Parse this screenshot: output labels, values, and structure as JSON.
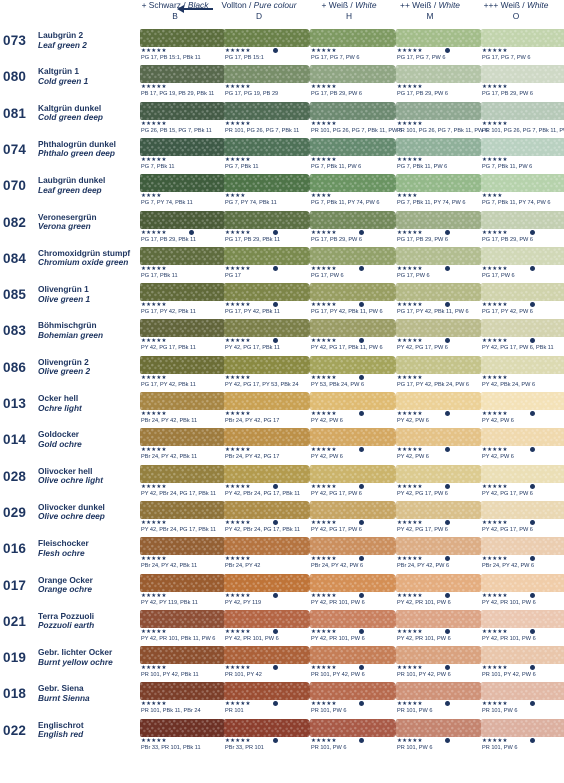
{
  "header": {
    "columns": [
      {
        "title": "+ Schwarz / ",
        "title_it": "Black",
        "letter": "B"
      },
      {
        "title": "Vollton / ",
        "title_it": "Pure colour",
        "letter": "D"
      },
      {
        "title": "+ Weiß / ",
        "title_it": "White",
        "letter": "H"
      },
      {
        "title": "++ Weiß / ",
        "title_it": "White",
        "letter": "M"
      },
      {
        "title": "+++ Weiß / ",
        "title_it": "White",
        "letter": "O"
      }
    ]
  },
  "rows": [
    {
      "num": "073",
      "de": "Laubgrün 2",
      "en": "Leaf green 2",
      "cells": [
        {
          "color": "#5c6e3e",
          "stars": "★★★★★",
          "dot": false,
          "pig": "PG 17, PB 15:1, PBk 11"
        },
        {
          "color": "#6a8149",
          "stars": "★★★★★",
          "dot": true,
          "pig": "PG 17, PB 15:1"
        },
        {
          "color": "#7e9a62",
          "stars": "★★★★★",
          "dot": false,
          "pig": "PG 17, PG 7, PW 6"
        },
        {
          "color": "#a3bd8a",
          "stars": "★★★★★",
          "dot": true,
          "pig": "PG 17, PG 7, PW 6"
        },
        {
          "color": "#c2d4ad",
          "stars": "★★★★★",
          "dot": false,
          "pig": "PG 17, PG 7, PW 6"
        }
      ]
    },
    {
      "num": "080",
      "de": "Kaltgrün 1",
      "en": "Cold green 1",
      "cells": [
        {
          "color": "#58694d",
          "stars": "★★★★★",
          "dot": false,
          "pig": "PB 17, PG 19, PB 29, PBk 11"
        },
        {
          "color": "#788e69",
          "stars": "★★★★★",
          "dot": false,
          "pig": "PG 17, PG 19, PB 29"
        },
        {
          "color": "#8fa583",
          "stars": "★★★★★",
          "dot": false,
          "pig": "PG 17, PB 29, PW 6"
        },
        {
          "color": "#b3c4a7",
          "stars": "★★★★★",
          "dot": false,
          "pig": "PG 17, PB 29, PW 6"
        },
        {
          "color": "#cfd9c6",
          "stars": "★★★★★",
          "dot": false,
          "pig": "PG 17, PB 29, PW 6"
        }
      ]
    },
    {
      "num": "081",
      "de": "Kaltgrün dunkel",
      "en": "Cold green deep",
      "cells": [
        {
          "color": "#455c47",
          "stars": "★★★★★",
          "dot": false,
          "pig": "PG 26, PB 15, PG 7, PBk 11"
        },
        {
          "color": "#4f6b54",
          "stars": "★★★★★",
          "dot": false,
          "pig": "PR 101, PG 26, PG 7, PBk 11"
        },
        {
          "color": "#6d8a71",
          "stars": "★★★★★",
          "dot": false,
          "pig": "PR 101, PG 26, PG 7, PBk 11, PW 6"
        },
        {
          "color": "#8fa892",
          "stars": "★★★★★",
          "dot": false,
          "pig": "PR 101, PG 26, PG 7, PBk 11, PW 6"
        },
        {
          "color": "#b6c9b8",
          "stars": "★★★★★",
          "dot": false,
          "pig": "PR 101, PG 26, PG 7, PBk 11, PW 6"
        }
      ]
    },
    {
      "num": "074",
      "de": "Phthalogrün dunkel",
      "en": "Phthalo green deep",
      "cells": [
        {
          "color": "#3e5a47",
          "stars": "★★★★★",
          "dot": false,
          "pig": "PG 7, PBk 11"
        },
        {
          "color": "#4e7157",
          "stars": "★★★★★",
          "dot": false,
          "pig": "PG 7, PBk 11"
        },
        {
          "color": "#648a6f",
          "stars": "★★★★★",
          "dot": false,
          "pig": "PG 7, PBk 11, PW 6"
        },
        {
          "color": "#8fb09a",
          "stars": "★★★★★",
          "dot": false,
          "pig": "PG 7, PBk 11, PW 6"
        },
        {
          "color": "#b9d1c1",
          "stars": "★★★★★",
          "dot": false,
          "pig": "PG 7, PBk 11, PW 6"
        }
      ]
    },
    {
      "num": "070",
      "de": "Laubgrün dunkel",
      "en": "Leaf green deep",
      "cells": [
        {
          "color": "#3f5d3d",
          "stars": "★★★★",
          "dot": false,
          "pig": "PG 7, PY 74, PBk 11"
        },
        {
          "color": "#4e7448",
          "stars": "★★★★",
          "dot": false,
          "pig": "PG 7, PY 74, PBk 11"
        },
        {
          "color": "#6a9462",
          "stars": "★★★★",
          "dot": false,
          "pig": "PG 7, PBk 11, PY 74, PW 6"
        },
        {
          "color": "#94b98a",
          "stars": "★★★★",
          "dot": false,
          "pig": "PG 7, PBk 11, PY 74, PW 6"
        },
        {
          "color": "#b6d2ac",
          "stars": "★★★★",
          "dot": false,
          "pig": "PG 7, PBk 11, PY 74, PW 6"
        }
      ]
    },
    {
      "num": "082",
      "de": "Veronesergrün",
      "en": "Verona green",
      "cells": [
        {
          "color": "#4b5c38",
          "stars": "★★★★★",
          "dot": true,
          "pig": "PG 17, PB 29, PBk 11"
        },
        {
          "color": "#5c7044",
          "stars": "★★★★★",
          "dot": true,
          "pig": "PG 17, PB 29, PBk 11"
        },
        {
          "color": "#73895b",
          "stars": "★★★★★",
          "dot": true,
          "pig": "PG 17, PB 29, PW 6"
        },
        {
          "color": "#9cad86",
          "stars": "★★★★★",
          "dot": true,
          "pig": "PG 17, PB 29, PW 6"
        },
        {
          "color": "#c3cfb2",
          "stars": "★★★★★",
          "dot": true,
          "pig": "PG 17, PB 29, PW 6"
        }
      ]
    },
    {
      "num": "084",
      "de": "Chromoxidgrün stumpf",
      "en": "Chromium oxide green",
      "cells": [
        {
          "color": "#5f6c3e",
          "stars": "★★★★★",
          "dot": false,
          "pig": "PG 17, PBk 11"
        },
        {
          "color": "#7a8a4e",
          "stars": "★★★★★",
          "dot": true,
          "pig": "PG 17"
        },
        {
          "color": "#92a16a",
          "stars": "★★★★★",
          "dot": true,
          "pig": "PG 17, PW 6"
        },
        {
          "color": "#b2bd90",
          "stars": "★★★★★",
          "dot": true,
          "pig": "PG 17, PW 6"
        },
        {
          "color": "#d1d8b7",
          "stars": "★★★★★",
          "dot": true,
          "pig": "PG 17, PW 6"
        }
      ]
    },
    {
      "num": "085",
      "de": "Olivengrün 1",
      "en": "Olive green 1",
      "cells": [
        {
          "color": "#616a3a",
          "stars": "★★★★★",
          "dot": false,
          "pig": "PG 17, PY 42, PBk 11"
        },
        {
          "color": "#7d8548",
          "stars": "★★★★★",
          "dot": true,
          "pig": "PG 17, PY 42, PBk 11"
        },
        {
          "color": "#989e62",
          "stars": "★★★★★",
          "dot": true,
          "pig": "PG 17, PY 42, PBk 11, PW 6"
        },
        {
          "color": "#b4b986",
          "stars": "★★★★★",
          "dot": true,
          "pig": "PG 17, PY 42, PBk 11, PW 6"
        },
        {
          "color": "#d0d3ac",
          "stars": "★★★★★",
          "dot": true,
          "pig": "PG 17, PY 42, PW 6"
        }
      ]
    },
    {
      "num": "083",
      "de": "Böhmischgrün",
      "en": "Bohemian green",
      "cells": [
        {
          "color": "#62653b",
          "stars": "★★★★★",
          "dot": false,
          "pig": "PY 42, PG 17, PBk 11"
        },
        {
          "color": "#7b7f49",
          "stars": "★★★★★",
          "dot": true,
          "pig": "PY 42, PG 17, PBk 11"
        },
        {
          "color": "#9a9c65",
          "stars": "★★★★★",
          "dot": true,
          "pig": "PY 42, PG 17, PBk 11, PW 6"
        },
        {
          "color": "#b9ba8b",
          "stars": "★★★★★",
          "dot": true,
          "pig": "PY 42, PG 17, PW 6"
        },
        {
          "color": "#d3d3af",
          "stars": "★★★★★",
          "dot": true,
          "pig": "PY 42, PG 17, PW 6, PBk 11"
        }
      ]
    },
    {
      "num": "086",
      "de": "Olivengrün 2",
      "en": "Olive green 2",
      "cells": [
        {
          "color": "#6c6e36",
          "stars": "★★★★★",
          "dot": false,
          "pig": "PG 17, PY 42, PBk 11"
        },
        {
          "color": "#8a8a42",
          "stars": "★★★★★",
          "dot": false,
          "pig": "PY 42, PG 17, PY 53, PBk 24"
        },
        {
          "color": "#a4a45b",
          "stars": "★★★★★",
          "dot": true,
          "pig": "PY 53, PBk 24, PW 6"
        },
        {
          "color": "#c4c38a",
          "stars": "★★★★★",
          "dot": false,
          "pig": "PG 17, PY 42, PBk 24, PW 6"
        },
        {
          "color": "#dcdab2",
          "stars": "★★★★★",
          "dot": false,
          "pig": "PY 42, PBk 24, PW 6"
        }
      ]
    },
    {
      "num": "013",
      "de": "Ocker hell",
      "en": "Ochre light",
      "cells": [
        {
          "color": "#a78644",
          "stars": "★★★★★",
          "dot": false,
          "pig": "PBr 24, PY 42, PBk 11"
        },
        {
          "color": "#c9a153",
          "stars": "★★★★★",
          "dot": false,
          "pig": "PBr 24, PY 42, PG 17"
        },
        {
          "color": "#dfbb72",
          "stars": "★★★★★",
          "dot": true,
          "pig": "PY 42, PW 6"
        },
        {
          "color": "#ecd197",
          "stars": "★★★★★",
          "dot": true,
          "pig": "PY 42, PW 6"
        },
        {
          "color": "#f4e2b8",
          "stars": "★★★★★",
          "dot": true,
          "pig": "PY 42, PW 6"
        }
      ]
    },
    {
      "num": "014",
      "de": "Goldocker",
      "en": "Gold ochre",
      "cells": [
        {
          "color": "#9e7b3e",
          "stars": "★★★★★",
          "dot": false,
          "pig": "PBr 24, PY 42, PBk 11"
        },
        {
          "color": "#bc9048",
          "stars": "★★★★★",
          "dot": false,
          "pig": "PBr 24, PY 42, PG 17"
        },
        {
          "color": "#d4a862",
          "stars": "★★★★★",
          "dot": true,
          "pig": "PY 42, PW 6"
        },
        {
          "color": "#e4c287",
          "stars": "★★★★★",
          "dot": true,
          "pig": "PY 42, PW 6"
        },
        {
          "color": "#f0d9ae",
          "stars": "★★★★★",
          "dot": true,
          "pig": "PY 42, PW 6"
        }
      ]
    },
    {
      "num": "028",
      "de": "Olivocker hell",
      "en": "Olive ochre light",
      "cells": [
        {
          "color": "#94803f",
          "stars": "★★★★★",
          "dot": false,
          "pig": "PY 42, PBr 24, PG 17, PBk 11"
        },
        {
          "color": "#b39b4e",
          "stars": "★★★★★",
          "dot": true,
          "pig": "PY 42, PBr 24, PG 17, PBk 11"
        },
        {
          "color": "#cbb46b",
          "stars": "★★★★★",
          "dot": true,
          "pig": "PY 42, PG 17, PW 6"
        },
        {
          "color": "#dccb90",
          "stars": "★★★★★",
          "dot": true,
          "pig": "PY 42, PG 17, PW 6"
        },
        {
          "color": "#ebdfb6",
          "stars": "★★★★★",
          "dot": true,
          "pig": "PY 42, PG 17, PW 6"
        }
      ]
    },
    {
      "num": "029",
      "de": "Olivocker dunkel",
      "en": "Olive ochre deep",
      "cells": [
        {
          "color": "#8e733a",
          "stars": "★★★★★",
          "dot": false,
          "pig": "PY 42, PBr 24, PG 17, PBk 11"
        },
        {
          "color": "#ac8c47",
          "stars": "★★★★★",
          "dot": true,
          "pig": "PY 42, PBr 24, PG 17, PBk 11"
        },
        {
          "color": "#c6a564",
          "stars": "★★★★★",
          "dot": true,
          "pig": "PY 42, PG 17, PW 6"
        },
        {
          "color": "#d9c08b",
          "stars": "★★★★★",
          "dot": true,
          "pig": "PY 42, PG 17, PW 6"
        },
        {
          "color": "#ead8b3",
          "stars": "★★★★★",
          "dot": true,
          "pig": "PY 42, PG 17, PW 6"
        }
      ]
    },
    {
      "num": "016",
      "de": "Fleischocker",
      "en": "Flesh ochre",
      "cells": [
        {
          "color": "#946034",
          "stars": "★★★★★",
          "dot": false,
          "pig": "PBr 24, PY 42, PBk 11"
        },
        {
          "color": "#b57440",
          "stars": "★★★★★",
          "dot": false,
          "pig": "PBr 24, PY 42"
        },
        {
          "color": "#cb8f5e",
          "stars": "★★★★★",
          "dot": true,
          "pig": "PBr 24, PY 42, PW 6"
        },
        {
          "color": "#dcad85",
          "stars": "★★★★★",
          "dot": true,
          "pig": "PBr 24, PY 42, PW 6"
        },
        {
          "color": "#ebcdb0",
          "stars": "★★★★★",
          "dot": true,
          "pig": "PBr 24, PY 42, PW 6"
        }
      ]
    },
    {
      "num": "017",
      "de": "Orange Ocker",
      "en": "Orange ochre",
      "cells": [
        {
          "color": "#9a5c2f",
          "stars": "★★★★★",
          "dot": false,
          "pig": "PY 42, PY 119, PBk 11"
        },
        {
          "color": "#bf7438",
          "stars": "★★★★★",
          "dot": true,
          "pig": "PY 42, PY 119"
        },
        {
          "color": "#d48f55",
          "stars": "★★★★★",
          "dot": true,
          "pig": "PY 42, PR 101, PW 6"
        },
        {
          "color": "#e4ad7f",
          "stars": "★★★★★",
          "dot": true,
          "pig": "PY 42, PR 101, PW 6"
        },
        {
          "color": "#f0cda9",
          "stars": "★★★★★",
          "dot": true,
          "pig": "PY 42, PR 101, PW 6"
        }
      ]
    },
    {
      "num": "021",
      "de": "Terra Pozzuoli",
      "en": "Pozzuoli earth",
      "cells": [
        {
          "color": "#8e4f36",
          "stars": "★★★★★",
          "dot": false,
          "pig": "PY 42, PR 101, PBk 11, PW 6"
        },
        {
          "color": "#b46544",
          "stars": "★★★★★",
          "dot": true,
          "pig": "PY 42, PR 101, PW 6"
        },
        {
          "color": "#c9805f",
          "stars": "★★★★★",
          "dot": true,
          "pig": "PY 42, PR 101, PW 6"
        },
        {
          "color": "#dca486",
          "stars": "★★★★★",
          "dot": true,
          "pig": "PY 42, PR 101, PW 6"
        },
        {
          "color": "#ebc7b1",
          "stars": "★★★★★",
          "dot": true,
          "pig": "PY 42, PR 101, PW 6"
        }
      ]
    },
    {
      "num": "019",
      "de": "Gebr. lichter Ocker",
      "en": "Burnt yellow ochre",
      "cells": [
        {
          "color": "#8c4f2e",
          "stars": "★★★★★",
          "dot": false,
          "pig": "PR 101, PY 42, PBk 11"
        },
        {
          "color": "#ac6139",
          "stars": "★★★★★",
          "dot": true,
          "pig": "PR 101, PY 42"
        },
        {
          "color": "#c57e57",
          "stars": "★★★★★",
          "dot": true,
          "pig": "PR 101, PY 42, PW 6"
        },
        {
          "color": "#d9a27f",
          "stars": "★★★★★",
          "dot": true,
          "pig": "PR 101, PY 42, PW 6"
        },
        {
          "color": "#e9c6ab",
          "stars": "★★★★★",
          "dot": true,
          "pig": "PR 101, PY 42, PW 6"
        }
      ]
    },
    {
      "num": "018",
      "de": "Gebr. Siena",
      "en": "Burnt Sienna",
      "cells": [
        {
          "color": "#7c3f2a",
          "stars": "★★★★★",
          "dot": false,
          "pig": "PR 101, PBk 11, PBr 24"
        },
        {
          "color": "#9c4e33",
          "stars": "★★★★★",
          "dot": true,
          "pig": "PR 101"
        },
        {
          "color": "#b76a4e",
          "stars": "★★★★★",
          "dot": true,
          "pig": "PR 101, PW 6"
        },
        {
          "color": "#cf9278",
          "stars": "★★★★★",
          "dot": true,
          "pig": "PR 101, PW 6"
        },
        {
          "color": "#e2b9a6",
          "stars": "★★★★★",
          "dot": true,
          "pig": "PR 101, PW 6"
        }
      ]
    },
    {
      "num": "022",
      "de": "Englischrot",
      "en": "English red",
      "cells": [
        {
          "color": "#6e3226",
          "stars": "★★★★★",
          "dot": false,
          "pig": "PBr 33, PR 101, PBk 11"
        },
        {
          "color": "#8d3f2e",
          "stars": "★★★★★",
          "dot": true,
          "pig": "PBr 33, PR 101"
        },
        {
          "color": "#a95a47",
          "stars": "★★★★★",
          "dot": true,
          "pig": "PR 101, PW 6"
        },
        {
          "color": "#c4846f",
          "stars": "★★★★★",
          "dot": true,
          "pig": "PR 101, PW 6"
        },
        {
          "color": "#dcb0a0",
          "stars": "★★★★★",
          "dot": true,
          "pig": "PR 101, PW 6"
        }
      ]
    }
  ]
}
